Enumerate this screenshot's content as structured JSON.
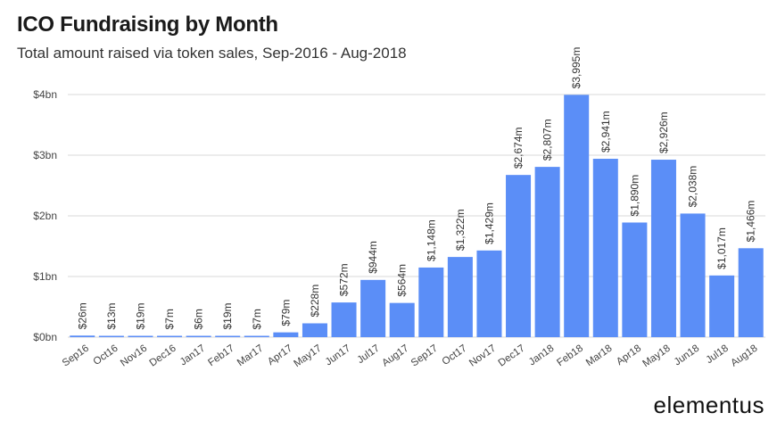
{
  "header": {
    "title": "ICO Fundraising by Month",
    "subtitle": "Total amount raised via token sales, Sep-2016 - Aug-2018"
  },
  "brand": {
    "logo_text": "elementus"
  },
  "colors": {
    "bar": "#5b8ef7",
    "grid": "#d9d9d9"
  },
  "chart_data": {
    "type": "bar",
    "title": "ICO Fundraising by Month",
    "subtitle": "Total amount raised via token sales, Sep-2016 - Aug-2018",
    "xlabel": "",
    "ylabel": "",
    "unit": "USD millions",
    "ylim": [
      0,
      4000
    ],
    "yticks": [
      {
        "value": 0,
        "label": "$0bn"
      },
      {
        "value": 1000,
        "label": "$1bn"
      },
      {
        "value": 2000,
        "label": "$2bn"
      },
      {
        "value": 3000,
        "label": "$3bn"
      },
      {
        "value": 4000,
        "label": "$4bn"
      }
    ],
    "grid": true,
    "categories": [
      "Sep16",
      "Oct16",
      "Nov16",
      "Dec16",
      "Jan17",
      "Feb17",
      "Mar17",
      "Apr17",
      "May17",
      "Jun17",
      "Jul17",
      "Aug17",
      "Sep17",
      "Oct17",
      "Nov17",
      "Dec17",
      "Jan18",
      "Feb18",
      "Mar18",
      "Apr18",
      "May18",
      "Jun18",
      "Jul18",
      "Aug18"
    ],
    "values": [
      26,
      13,
      19,
      7,
      6,
      19,
      7,
      79,
      228,
      572,
      944,
      564,
      1148,
      1322,
      1429,
      2674,
      2807,
      3995,
      2941,
      1890,
      2926,
      2038,
      1017,
      1466
    ],
    "data_labels": [
      "$26m",
      "$13m",
      "$19m",
      "$7m",
      "$6m",
      "$19m",
      "$7m",
      "$79m",
      "$228m",
      "$572m",
      "$944m",
      "$564m",
      "$1,148m",
      "$1,322m",
      "$1,429m",
      "$2,674m",
      "$2,807m",
      "$3,995m",
      "$2,941m",
      "$1,890m",
      "$2,926m",
      "$2,038m",
      "$1,017m",
      "$1,466m"
    ]
  }
}
